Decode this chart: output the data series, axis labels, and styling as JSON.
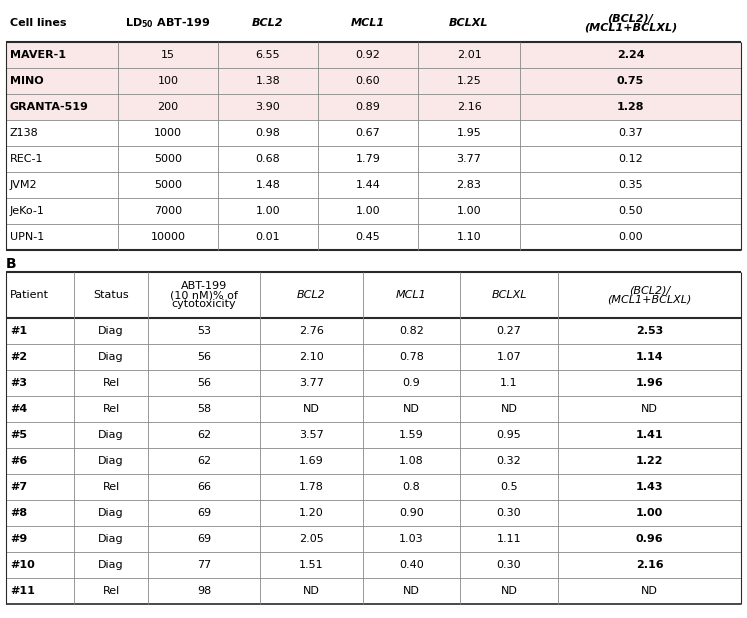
{
  "table_A_headers": [
    "Cell lines",
    "BCL2",
    "MCL1",
    "BCLXL",
    "(BCL2)/\n(MCL1+BCLXL)"
  ],
  "table_A_col1_header": "LD",
  "table_A_col1_header_sub": "50",
  "table_A_col1_header_rest": " ABT-199",
  "table_A_headers_italic": [
    false,
    true,
    true,
    true,
    true
  ],
  "table_A_rows": [
    [
      "MAVER-1",
      "15",
      "6.55",
      "0.92",
      "2.01",
      "2.24"
    ],
    [
      "MINO",
      "100",
      "1.38",
      "0.60",
      "1.25",
      "0.75"
    ],
    [
      "GRANTA-519",
      "200",
      "3.90",
      "0.89",
      "2.16",
      "1.28"
    ],
    [
      "Z138",
      "1000",
      "0.98",
      "0.67",
      "1.95",
      "0.37"
    ],
    [
      "REC-1",
      "5000",
      "0.68",
      "1.79",
      "3.77",
      "0.12"
    ],
    [
      "JVM2",
      "5000",
      "1.48",
      "1.44",
      "2.83",
      "0.35"
    ],
    [
      "JeKo-1",
      "7000",
      "1.00",
      "1.00",
      "1.00",
      "0.50"
    ],
    [
      "UPN-1",
      "10000",
      "0.01",
      "0.45",
      "1.10",
      "0.00"
    ]
  ],
  "table_A_bold_rows": [
    0,
    1,
    2
  ],
  "table_B_headers": [
    "Patient",
    "Status",
    "ABT-199\n(10 nM)% of\ncytotoxicity",
    "BCL2",
    "MCL1",
    "BCLXL",
    "(BCL2)/\n(MCL1+BCLXL)"
  ],
  "table_B_headers_italic": [
    false,
    false,
    false,
    true,
    true,
    true,
    true
  ],
  "table_B_rows": [
    [
      "#1",
      "Diag",
      "53",
      "2.76",
      "0.82",
      "0.27",
      "2.53"
    ],
    [
      "#2",
      "Diag",
      "56",
      "2.10",
      "0.78",
      "1.07",
      "1.14"
    ],
    [
      "#3",
      "Rel",
      "56",
      "3.77",
      "0.9",
      "1.1",
      "1.96"
    ],
    [
      "#4",
      "Rel",
      "58",
      "ND",
      "ND",
      "ND",
      "ND"
    ],
    [
      "#5",
      "Diag",
      "62",
      "3.57",
      "1.59",
      "0.95",
      "1.41"
    ],
    [
      "#6",
      "Diag",
      "62",
      "1.69",
      "1.08",
      "0.32",
      "1.22"
    ],
    [
      "#7",
      "Rel",
      "66",
      "1.78",
      "0.8",
      "0.5",
      "1.43"
    ],
    [
      "#8",
      "Diag",
      "69",
      "1.20",
      "0.90",
      "0.30",
      "1.00"
    ],
    [
      "#9",
      "Diag",
      "69",
      "2.05",
      "1.03",
      "1.11",
      "0.96"
    ],
    [
      "#10",
      "Diag",
      "77",
      "1.51",
      "0.40",
      "0.30",
      "2.16"
    ],
    [
      "#11",
      "Rel",
      "98",
      "ND",
      "ND",
      "ND",
      "ND"
    ]
  ],
  "table_B_bold_last_col_rows": [
    0,
    1,
    2,
    4,
    5,
    6,
    7,
    8,
    9
  ],
  "bold_row_bg": "#fae8e8",
  "normal_row_bg": "#ffffff",
  "line_dark": "#2a2a2a",
  "line_light": "#888888"
}
